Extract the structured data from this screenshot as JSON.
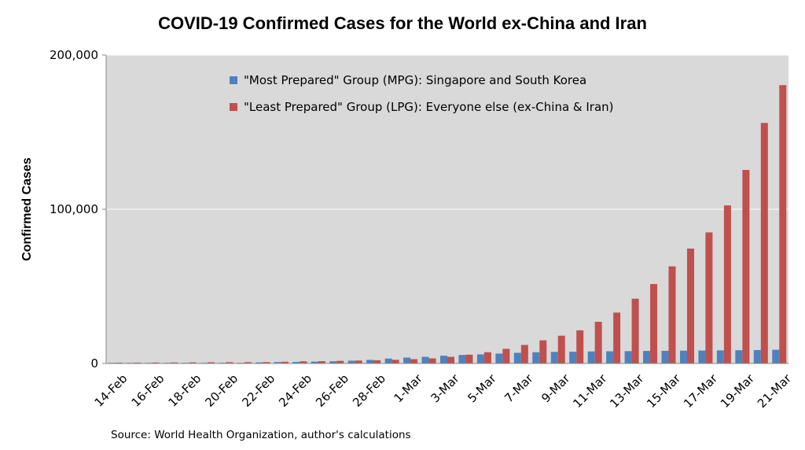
{
  "chart_data": {
    "type": "bar",
    "title": "COVID-19 Confirmed Cases for the World ex-China and Iran",
    "xlabel": "",
    "ylabel": "Confirmed Cases",
    "ylim": [
      0,
      200000
    ],
    "yticks": [
      0,
      100000,
      200000
    ],
    "ytick_labels": [
      "0",
      "100,000",
      "200,000"
    ],
    "categories": [
      "14-Feb",
      "15-Feb",
      "16-Feb",
      "17-Feb",
      "18-Feb",
      "19-Feb",
      "20-Feb",
      "21-Feb",
      "22-Feb",
      "23-Feb",
      "24-Feb",
      "25-Feb",
      "26-Feb",
      "27-Feb",
      "28-Feb",
      "29-Feb",
      "1-Mar",
      "2-Mar",
      "3-Mar",
      "4-Mar",
      "5-Mar",
      "6-Mar",
      "7-Mar",
      "8-Mar",
      "9-Mar",
      "10-Mar",
      "11-Mar",
      "12-Mar",
      "13-Mar",
      "14-Mar",
      "15-Mar",
      "16-Mar",
      "17-Mar",
      "18-Mar",
      "19-Mar",
      "20-Mar",
      "21-Mar"
    ],
    "xtick_labels": [
      "14-Feb",
      "16-Feb",
      "18-Feb",
      "20-Feb",
      "22-Feb",
      "24-Feb",
      "26-Feb",
      "28-Feb",
      "1-Mar",
      "3-Mar",
      "5-Mar",
      "7-Mar",
      "9-Mar",
      "11-Mar",
      "13-Mar",
      "15-Mar",
      "17-Mar",
      "19-Mar",
      "21-Mar"
    ],
    "series": [
      {
        "name": "\"Most Prepared\" Group (MPG): Singapore and South Korea",
        "color": "#4f81bd",
        "values": [
          100,
          100,
          100,
          100,
          120,
          160,
          250,
          400,
          700,
          900,
          1000,
          1200,
          1400,
          1800,
          2300,
          3200,
          3800,
          4300,
          5000,
          5500,
          5900,
          6400,
          6900,
          7300,
          7500,
          7600,
          7800,
          7900,
          8000,
          8100,
          8200,
          8300,
          8400,
          8500,
          8600,
          8700,
          8900
        ]
      },
      {
        "name": "\"Least Prepared\" Group (LPG): Everyone else (ex-China & Iran)",
        "color": "#c0504d",
        "values": [
          500,
          550,
          600,
          650,
          700,
          750,
          800,
          850,
          900,
          1100,
          1400,
          1500,
          1700,
          1900,
          2100,
          2400,
          2800,
          3300,
          4300,
          5700,
          7300,
          9500,
          12000,
          15000,
          18000,
          21500,
          27000,
          33000,
          42000,
          51500,
          63000,
          74500,
          85000,
          102500,
          125500,
          156000,
          180500
        ]
      }
    ],
    "grid": true,
    "legend_position": "top",
    "plot_background": "#d9d9d9",
    "source_note": "Source: World Health Organization, author's calculations"
  }
}
